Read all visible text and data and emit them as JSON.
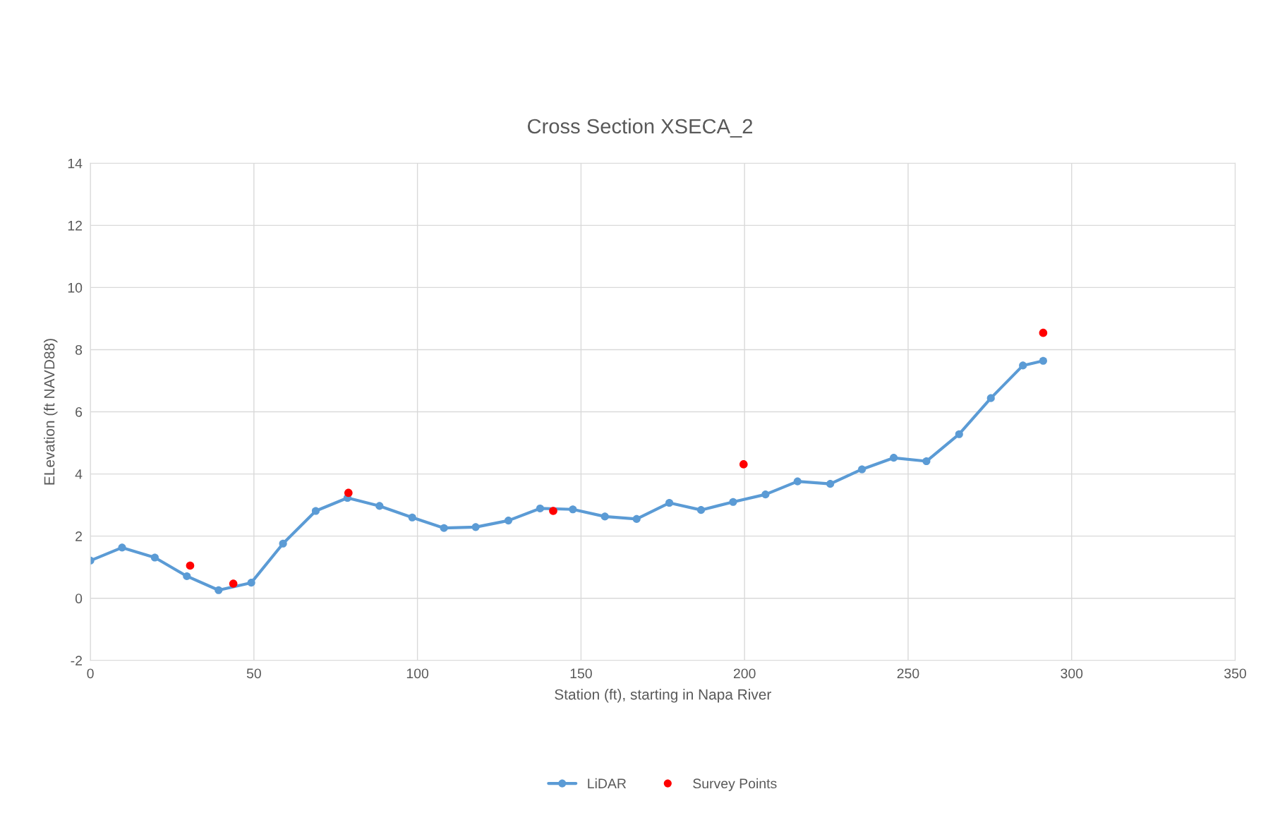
{
  "chart_data": {
    "type": "line",
    "title": "Cross Section XSECA_2",
    "xlabel": "Station (ft), starting in Napa River",
    "ylabel": "ELevation (ft NAVD88)",
    "xlim": [
      0,
      350
    ],
    "xticks": [
      0,
      50,
      100,
      150,
      200,
      250,
      300,
      350
    ],
    "ylim": [
      -2,
      14
    ],
    "yticks": [
      -2,
      0,
      2,
      4,
      6,
      8,
      10,
      12,
      14
    ],
    "grid": true,
    "legend": "bottom",
    "series": [
      {
        "name": "LiDAR",
        "color": "#5b9bd5",
        "marker": "circle",
        "line_style": "solid",
        "x": [
          0,
          9.7,
          19.7,
          29.5,
          39.2,
          49.2,
          58.9,
          68.9,
          78.6,
          88.4,
          98.4,
          108.1,
          117.8,
          127.8,
          137.5,
          147.5,
          157.3,
          167.0,
          177.0,
          186.7,
          196.5,
          206.4,
          216.2,
          226.2,
          235.9,
          245.6,
          255.6,
          265.6,
          275.3,
          285.1,
          291.3
        ],
        "values": [
          1.21,
          1.63,
          1.31,
          0.71,
          0.26,
          0.5,
          1.76,
          2.81,
          3.23,
          2.97,
          2.6,
          2.26,
          2.29,
          2.5,
          2.89,
          2.86,
          2.63,
          2.55,
          3.07,
          2.84,
          3.1,
          3.34,
          3.76,
          3.68,
          4.15,
          4.52,
          4.41,
          5.28,
          6.44,
          7.49,
          7.64
        ]
      },
      {
        "name": "Survey Points",
        "type": "scatter",
        "color": "#ff0000",
        "marker": "circle",
        "x": [
          30.5,
          43.7,
          78.9,
          141.5,
          199.7,
          291.3
        ],
        "values": [
          1.05,
          0.47,
          3.39,
          2.81,
          4.31,
          8.54
        ]
      }
    ]
  }
}
